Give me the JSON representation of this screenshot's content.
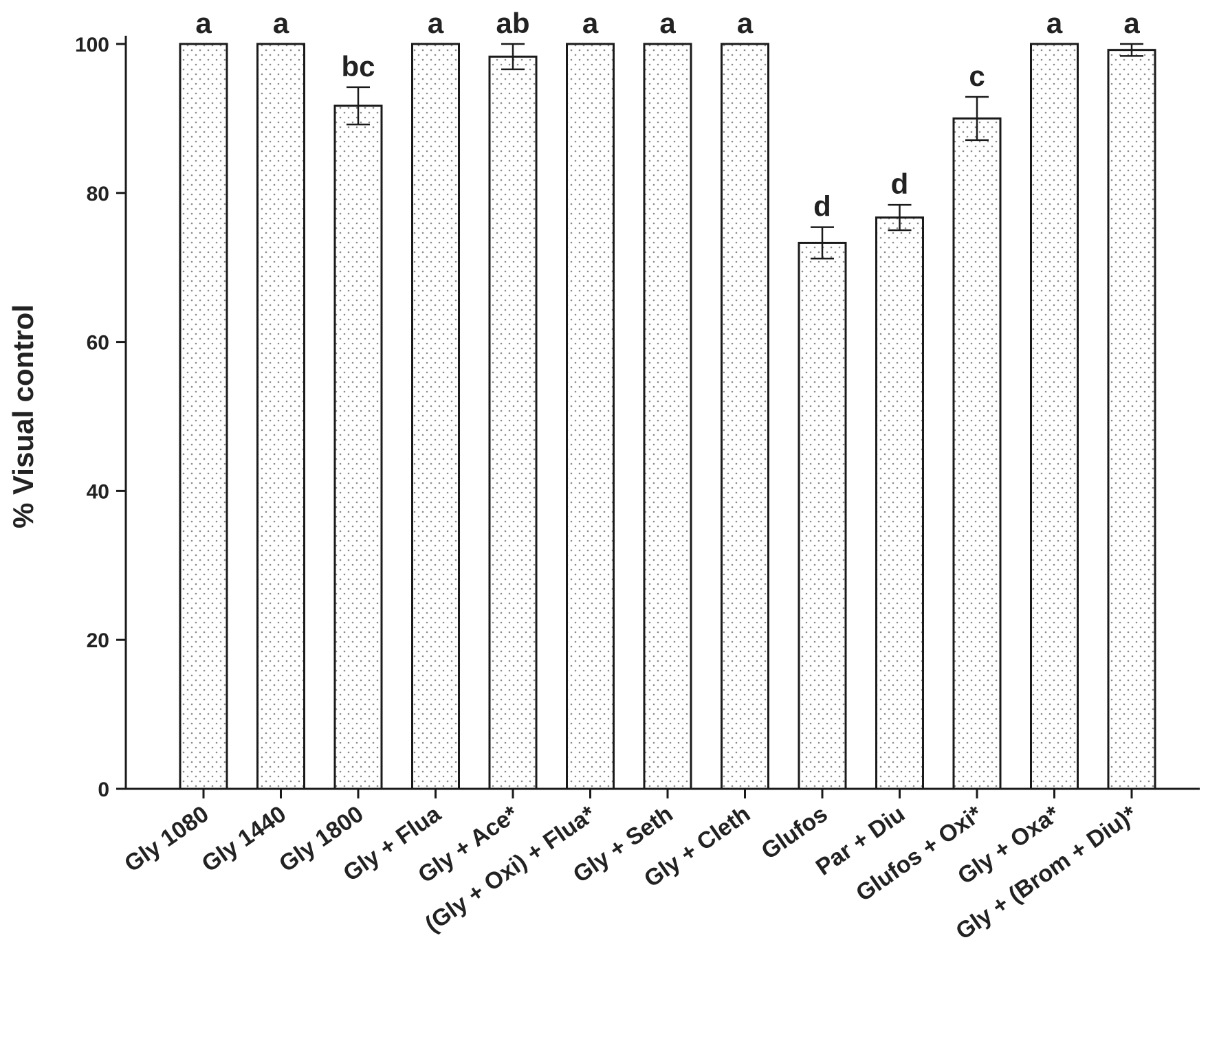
{
  "chart_data": {
    "type": "bar",
    "title": "",
    "xlabel": "",
    "ylabel": "% Visual control",
    "ylim": [
      0,
      100
    ],
    "yticks": [
      "0",
      "20",
      "40",
      "60",
      "80",
      "100"
    ],
    "grid": false,
    "legend": "none",
    "bar_pattern": "dotted",
    "colors": {
      "bar_fill": "#ffffff",
      "bar_stroke": "#1a1a1a",
      "dots": "#888888",
      "axis": "#1a1a1a"
    },
    "categories": [
      "Gly 1080",
      "Gly 1440",
      "Gly 1800",
      "Gly + Flua",
      "Gly + Ace*",
      "(Gly + Oxi) + Flua*",
      "Gly + Seth",
      "Gly + Cleth",
      "Glufos",
      "Par + Diu",
      "Glufos + Oxi*",
      "Gly + Oxa*",
      "Gly + (Brom + Diu)*"
    ],
    "values": [
      100,
      100,
      91.7,
      100,
      98.3,
      100,
      100,
      100,
      73.3,
      76.7,
      90.0,
      100,
      99.2
    ],
    "errors": [
      0,
      0,
      2.5,
      0,
      1.7,
      0,
      0,
      0,
      2.1,
      1.7,
      2.9,
      0,
      0.8
    ],
    "significance": [
      "a",
      "a",
      "bc",
      "a",
      "ab",
      "a",
      "a",
      "a",
      "d",
      "d",
      "c",
      "a",
      "a"
    ]
  }
}
